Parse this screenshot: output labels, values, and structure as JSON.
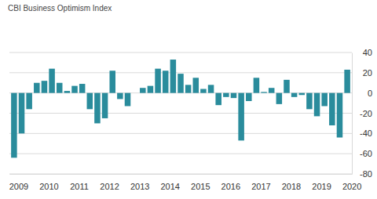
{
  "chart_data": {
    "type": "bar",
    "title": "CBI Business Optimism Index",
    "categories": [
      "2009",
      null,
      null,
      null,
      "2010",
      null,
      null,
      null,
      "2011",
      null,
      null,
      null,
      "2012",
      null,
      null,
      null,
      "2013",
      null,
      null,
      null,
      "2014",
      null,
      null,
      null,
      "2015",
      null,
      null,
      null,
      "2016",
      null,
      null,
      null,
      "2017",
      null,
      null,
      null,
      "2018",
      null,
      null,
      null,
      "2019",
      null,
      null,
      null,
      "2020"
    ],
    "values": [
      -64,
      -40,
      -16,
      10,
      12,
      24,
      10,
      2,
      7,
      9,
      -16,
      -30,
      -25,
      22,
      -6,
      -13,
      0,
      5,
      7,
      24,
      22,
      33,
      19,
      8,
      15,
      4,
      8,
      -12,
      -4,
      -5,
      -47,
      -8,
      15,
      1,
      5,
      -11,
      13,
      -4,
      -2,
      -16,
      -23,
      -13,
      -32,
      -44,
      23
    ],
    "color": "#2a8c9c",
    "ylim": [
      -80,
      40
    ],
    "yticks": [
      -80,
      -60,
      -40,
      -20,
      0,
      20,
      40
    ],
    "grid": true
  }
}
